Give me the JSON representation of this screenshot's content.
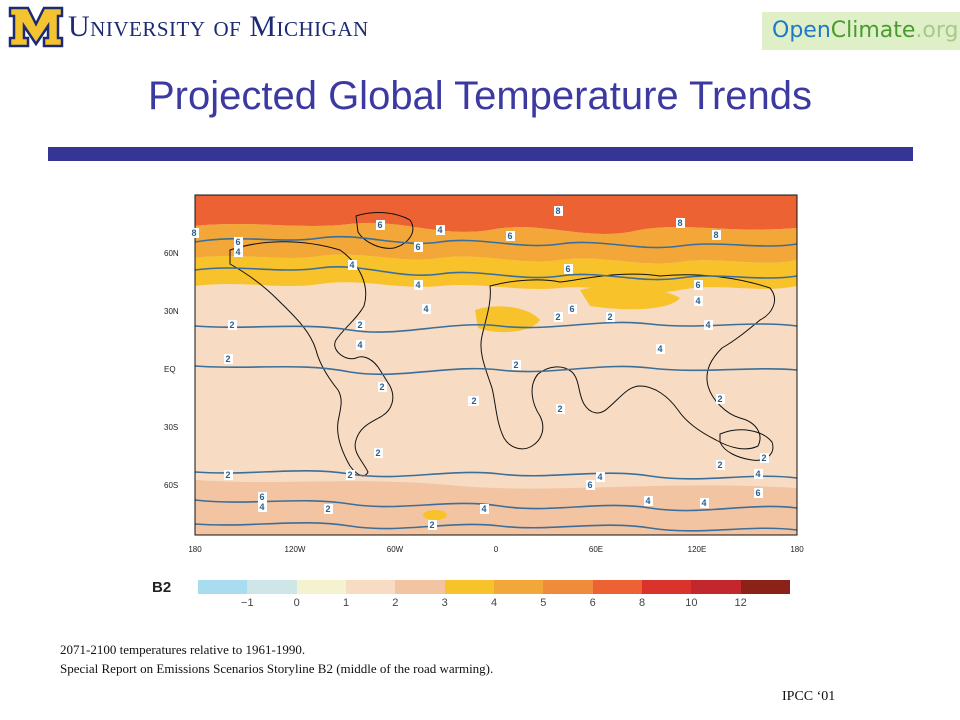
{
  "header": {
    "university_logo_text": "University of Michigan",
    "badge": {
      "open": "Open",
      "climate": "Climate",
      "org": ".org"
    }
  },
  "title": "Projected Global Temperature Trends",
  "map": {
    "lat_labels": [
      "60N",
      "30N",
      "EQ",
      "30S",
      "60S"
    ],
    "lon_labels": [
      "180",
      "120W",
      "60W",
      "0",
      "60E",
      "120E",
      "180"
    ],
    "contour_labels": [
      "8",
      "6",
      "4",
      "6",
      "4",
      "6",
      "4",
      "6",
      "8",
      "8",
      "8",
      "6",
      "4",
      "4",
      "6",
      "6",
      "4",
      "2",
      "2",
      "4",
      "2",
      "2",
      "4",
      "4",
      "2",
      "2",
      "2",
      "2",
      "2",
      "2",
      "2",
      "2",
      "2",
      "2",
      "4",
      "6",
      "4",
      "2",
      "2",
      "4",
      "6",
      "4",
      "4",
      "6",
      "2",
      "4",
      "2"
    ]
  },
  "legend": {
    "scenario": "B2",
    "colors": [
      "#a9dcef",
      "#cfe6e8",
      "#f5f2cf",
      "#f7dcc3",
      "#f3c4a2",
      "#f8c22a",
      "#f3a739",
      "#ef8c3b",
      "#ec6233",
      "#d9332c",
      "#c1272d",
      "#8b2218"
    ],
    "tick_values": [
      "−1",
      "0",
      "1",
      "2",
      "3",
      "4",
      "5",
      "6",
      "8",
      "10",
      "12"
    ]
  },
  "caption": {
    "line1": "2071-2100 temperatures relative to 1961-1990.",
    "line2": "Special Report on Emissions Scenarios Storyline B2 (middle of the road warming)."
  },
  "source": "IPCC ‘01"
}
